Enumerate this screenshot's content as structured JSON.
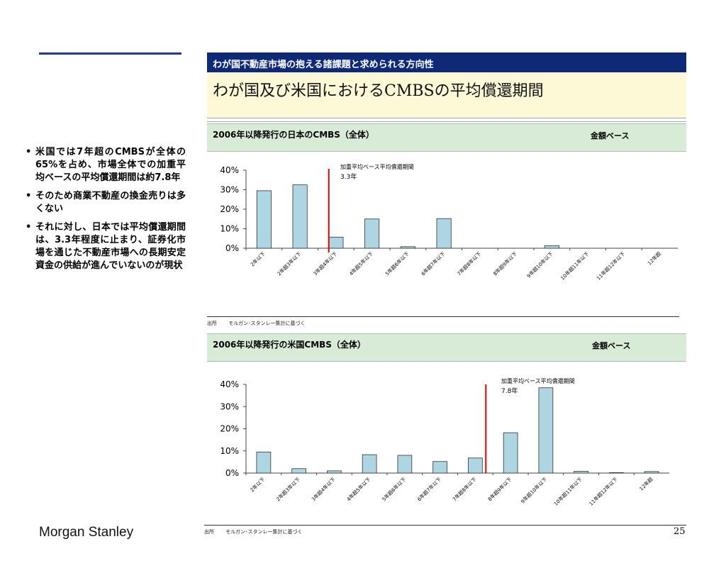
{
  "header": {
    "section_title": "わが国不動産市場の抱える諸課題と求められる方向性",
    "main_title": "わが国及び米国におけるCMBSの平均償還期間"
  },
  "bullets": [
    "米国では7年超のCMBSが全体の65%を占め、市場全体での加重平均ベースの平均償還期間は約7.8年",
    "そのため商業不動産の換金売りは多くない",
    "それに対し、日本では平均償還期間は、3.3年程度に止まり、証券化市場を通じた不動産市場への長期安定資金の供給が進んでいないのが現状"
  ],
  "charts": [
    {
      "section_title": "2006年以降発行の日本のCMBS（全体）",
      "basis": "金額ベース",
      "source_label": "出所",
      "source_text": "モルガン･スタンレー集計に基づく"
    },
    {
      "section_title": "2006年以降発行の米国CMBS（全体）",
      "basis": "金額ベース",
      "source_label": "出所",
      "source_text": "モルガン･スタンレー集計に基づく"
    }
  ],
  "chart_data": [
    {
      "type": "bar",
      "title": "2006年以降発行の日本のCMBS（全体）",
      "categories": [
        "2年以下",
        "2年超3年以下",
        "3年超4年以下",
        "4年超5年以下",
        "5年超6年以下",
        "6年超7年以下",
        "7年超8年以下",
        "8年超9年以下",
        "9年超10年以下",
        "10年超11年以下",
        "11年超12年以下",
        "12年超"
      ],
      "values": [
        29.5,
        32.5,
        5.7,
        15.0,
        0.8,
        15.2,
        0,
        0,
        1.3,
        0,
        0,
        0
      ],
      "ylim": [
        0,
        40
      ],
      "ytick_labels": [
        "40%",
        "30%",
        "20%",
        "10%",
        "0%"
      ],
      "bar_color": "#aed5e2",
      "marker": {
        "x": 3.3,
        "label_line1": "加重平均ベース平均償還期間",
        "label_line2": "3.3年",
        "color": "#e00000"
      }
    },
    {
      "type": "bar",
      "title": "2006年以降発行の米国CMBS（全体）",
      "categories": [
        "2年以下",
        "2年超3年以下",
        "3年超4年以下",
        "4年超5年以下",
        "5年超6年以下",
        "6年超7年以下",
        "7年超8年以下",
        "8年超9年以下",
        "9年超10年以下",
        "10年超11年以下",
        "11年超12年以下",
        "12年超"
      ],
      "values": [
        9.5,
        2.0,
        1.0,
        8.3,
        8.0,
        5.2,
        6.8,
        18.2,
        38.5,
        0.8,
        0.2,
        0.7
      ],
      "ylim": [
        0,
        40
      ],
      "ytick_labels": [
        "40%",
        "30%",
        "20%",
        "10%",
        "0%"
      ],
      "bar_color": "#aed5e2",
      "marker": {
        "x": 7.8,
        "label_line1": "加重平均ベース平均償還期間",
        "label_line2": "7.8年",
        "color": "#e00000"
      }
    }
  ],
  "footer": {
    "logo": "Morgan Stanley",
    "page_number": "25"
  }
}
